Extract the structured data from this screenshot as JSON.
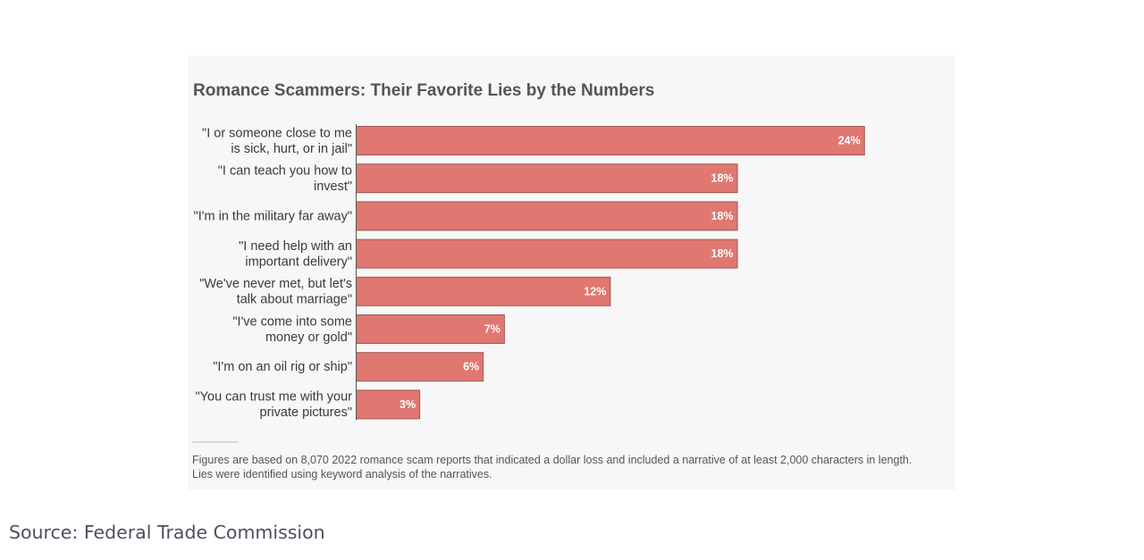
{
  "chart_data": {
    "type": "bar",
    "orientation": "horizontal",
    "title": "Romance Scammers: Their Favorite Lies by the Numbers",
    "categories": [
      [
        "\"I or someone close to me",
        "is sick, hurt, or in jail\""
      ],
      [
        "\"I can teach you how to",
        "invest\""
      ],
      [
        "\"I'm in the military far away\""
      ],
      [
        "\"I need help with an",
        "important delivery\""
      ],
      [
        "\"We've never met, but let's",
        "talk about marriage\""
      ],
      [
        "\"I've come into some",
        "money or gold\""
      ],
      [
        "\"I'm on an oil rig or ship\""
      ],
      [
        "\"You can trust me with your",
        "private pictures\""
      ]
    ],
    "values": [
      24,
      18,
      18,
      18,
      12,
      7,
      6,
      3
    ],
    "value_labels": [
      "24%",
      "18%",
      "18%",
      "18%",
      "12%",
      "7%",
      "6%",
      "3%"
    ],
    "xlim": [
      0,
      26.5
    ],
    "bar_color": "#e07770",
    "grid": false,
    "footnote": [
      "Figures are based on 8,070 2022 romance scam reports that indicated a dollar loss and included a narrative of at least 2,000 characters in length.",
      "Lies were identified using keyword analysis of the narratives."
    ]
  },
  "source": "Source: Federal Trade Commission"
}
